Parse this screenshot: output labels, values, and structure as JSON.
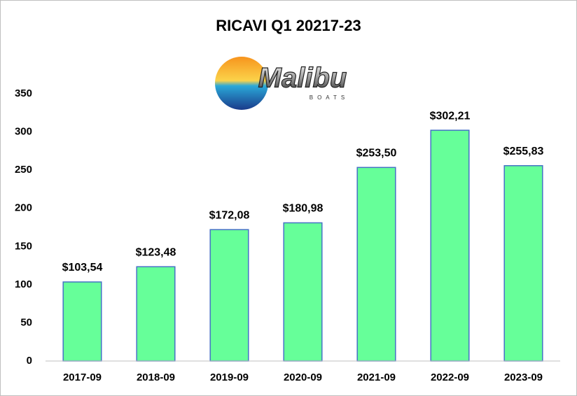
{
  "chart_data": {
    "type": "bar",
    "title": "RICAVI Q1 20217-23",
    "logo": {
      "text": "Malibu",
      "subtext": "BOATS"
    },
    "categories": [
      "2017-09",
      "2018-09",
      "2019-09",
      "2020-09",
      "2021-09",
      "2022-09",
      "2023-09"
    ],
    "values": [
      103.54,
      123.48,
      172.08,
      180.98,
      253.5,
      302.21,
      255.83
    ],
    "value_labels": [
      "$103,54",
      "$123,48",
      "$172,08",
      "$180,98",
      "$253,50",
      "$302,21",
      "$255,83"
    ],
    "color": "#66ff99",
    "edge_color": "#4472c4",
    "ylim": [
      0,
      350
    ],
    "yticks": [
      0,
      50,
      100,
      150,
      200,
      250,
      300,
      350
    ],
    "grid": false
  }
}
